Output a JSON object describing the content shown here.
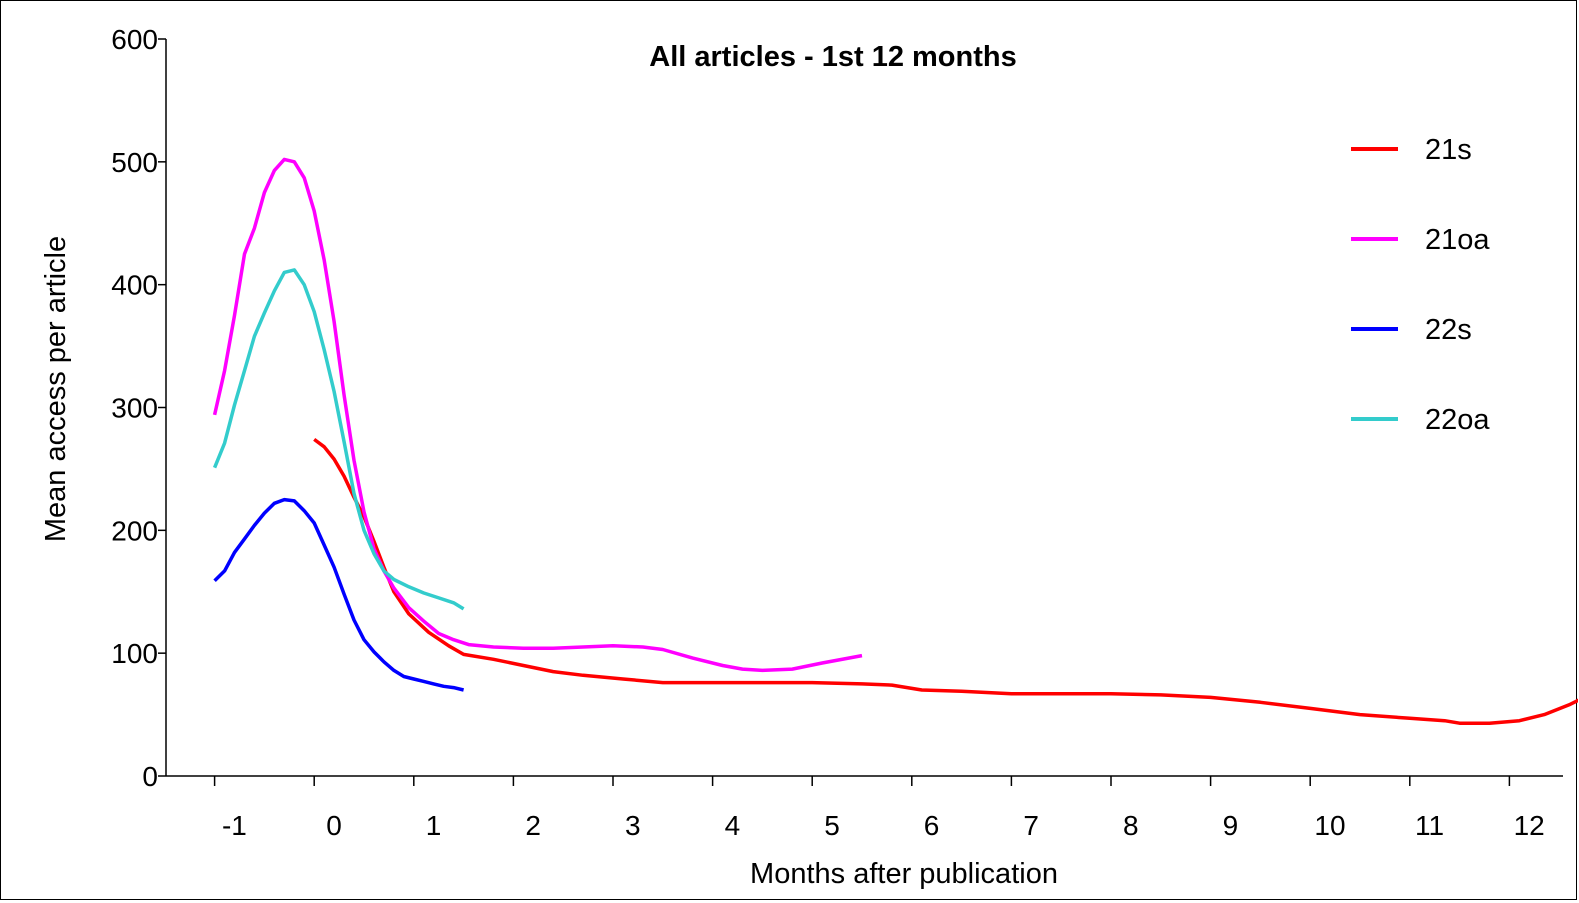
{
  "chart_data": {
    "type": "line",
    "title": "All articles - 1st 12 months",
    "xlabel": "Months after publication",
    "ylabel": "Mean access per article",
    "xlim": [
      -1.5,
      12.5
    ],
    "ylim": [
      0,
      600
    ],
    "x_ticks": [
      -1,
      0,
      1,
      2,
      3,
      4,
      5,
      6,
      7,
      8,
      9,
      10,
      11,
      12
    ],
    "x_tick_labels": [
      "-1",
      "0",
      "1",
      "2",
      "3",
      "4",
      "5",
      "6",
      "7",
      "8",
      "9",
      "10",
      "11",
      "12"
    ],
    "y_ticks": [
      0,
      100,
      200,
      300,
      400,
      500,
      600
    ],
    "y_tick_labels": [
      "0",
      "100",
      "200",
      "300",
      "400",
      "500",
      "600"
    ],
    "grid": false,
    "legend_position": "top-right",
    "series": [
      {
        "name": "21s",
        "color": "#ff0000",
        "points": [
          [
            -0.5,
            274
          ],
          [
            -0.4,
            268
          ],
          [
            -0.3,
            258
          ],
          [
            -0.2,
            244
          ],
          [
            -0.1,
            227
          ],
          [
            0.0,
            211
          ],
          [
            0.1,
            191
          ],
          [
            0.2,
            170
          ],
          [
            0.3,
            150
          ],
          [
            0.45,
            132
          ],
          [
            0.65,
            117
          ],
          [
            0.85,
            106
          ],
          [
            1.0,
            99
          ],
          [
            1.3,
            95
          ],
          [
            1.6,
            90
          ],
          [
            1.9,
            85
          ],
          [
            2.2,
            82
          ],
          [
            2.6,
            79
          ],
          [
            3.0,
            76
          ],
          [
            3.5,
            76
          ],
          [
            4.0,
            76
          ],
          [
            4.5,
            76
          ],
          [
            5.0,
            75
          ],
          [
            5.3,
            74
          ],
          [
            5.6,
            70
          ],
          [
            6.0,
            69
          ],
          [
            6.5,
            67
          ],
          [
            7.0,
            67
          ],
          [
            7.5,
            67
          ],
          [
            8.0,
            66
          ],
          [
            8.5,
            64
          ],
          [
            9.0,
            60
          ],
          [
            9.5,
            55
          ],
          [
            10.0,
            50
          ],
          [
            10.5,
            47
          ],
          [
            10.85,
            45
          ],
          [
            11.0,
            43
          ],
          [
            11.3,
            43
          ],
          [
            11.6,
            45
          ],
          [
            11.85,
            50
          ],
          [
            12.1,
            58
          ],
          [
            12.35,
            68
          ],
          [
            12.6,
            78
          ]
        ]
      },
      {
        "name": "21oa",
        "color": "#ff00ff",
        "points": [
          [
            -1.5,
            294
          ],
          [
            -1.4,
            330
          ],
          [
            -1.3,
            375
          ],
          [
            -1.2,
            425
          ],
          [
            -1.1,
            446
          ],
          [
            -1.0,
            475
          ],
          [
            -0.9,
            493
          ],
          [
            -0.8,
            502
          ],
          [
            -0.7,
            500
          ],
          [
            -0.6,
            487
          ],
          [
            -0.5,
            460
          ],
          [
            -0.4,
            420
          ],
          [
            -0.3,
            370
          ],
          [
            -0.2,
            310
          ],
          [
            -0.1,
            257
          ],
          [
            0.0,
            215
          ],
          [
            0.1,
            185
          ],
          [
            0.2,
            167
          ],
          [
            0.3,
            153
          ],
          [
            0.45,
            137
          ],
          [
            0.6,
            126
          ],
          [
            0.75,
            116
          ],
          [
            0.9,
            111
          ],
          [
            1.05,
            107
          ],
          [
            1.3,
            105
          ],
          [
            1.6,
            104
          ],
          [
            1.9,
            104
          ],
          [
            2.2,
            105
          ],
          [
            2.5,
            106
          ],
          [
            2.8,
            105
          ],
          [
            3.0,
            103
          ],
          [
            3.3,
            96
          ],
          [
            3.6,
            90
          ],
          [
            3.8,
            87
          ],
          [
            4.0,
            86
          ],
          [
            4.3,
            87
          ],
          [
            4.6,
            92
          ],
          [
            5.0,
            98
          ]
        ]
      },
      {
        "name": "22s",
        "color": "#0000ff",
        "points": [
          [
            -1.5,
            159
          ],
          [
            -1.4,
            167
          ],
          [
            -1.3,
            182
          ],
          [
            -1.2,
            193
          ],
          [
            -1.1,
            204
          ],
          [
            -1.0,
            214
          ],
          [
            -0.9,
            222
          ],
          [
            -0.8,
            225
          ],
          [
            -0.7,
            224
          ],
          [
            -0.6,
            216
          ],
          [
            -0.5,
            206
          ],
          [
            -0.4,
            188
          ],
          [
            -0.3,
            170
          ],
          [
            -0.2,
            148
          ],
          [
            -0.1,
            127
          ],
          [
            0.0,
            111
          ],
          [
            0.1,
            101
          ],
          [
            0.2,
            93
          ],
          [
            0.3,
            86
          ],
          [
            0.4,
            81
          ],
          [
            0.5,
            79
          ],
          [
            0.6,
            77
          ],
          [
            0.7,
            75
          ],
          [
            0.8,
            73
          ],
          [
            0.9,
            72
          ],
          [
            1.0,
            70
          ]
        ]
      },
      {
        "name": "22oa",
        "color": "#33cccc",
        "points": [
          [
            -1.5,
            251
          ],
          [
            -1.4,
            271
          ],
          [
            -1.3,
            302
          ],
          [
            -1.2,
            330
          ],
          [
            -1.1,
            358
          ],
          [
            -1.0,
            377
          ],
          [
            -0.9,
            395
          ],
          [
            -0.8,
            410
          ],
          [
            -0.7,
            412
          ],
          [
            -0.6,
            400
          ],
          [
            -0.5,
            378
          ],
          [
            -0.4,
            347
          ],
          [
            -0.3,
            313
          ],
          [
            -0.2,
            272
          ],
          [
            -0.1,
            230
          ],
          [
            0.0,
            200
          ],
          [
            0.1,
            181
          ],
          [
            0.2,
            167
          ],
          [
            0.3,
            160
          ],
          [
            0.45,
            154
          ],
          [
            0.6,
            149
          ],
          [
            0.75,
            145
          ],
          [
            0.9,
            141
          ],
          [
            1.0,
            136
          ]
        ]
      }
    ]
  }
}
